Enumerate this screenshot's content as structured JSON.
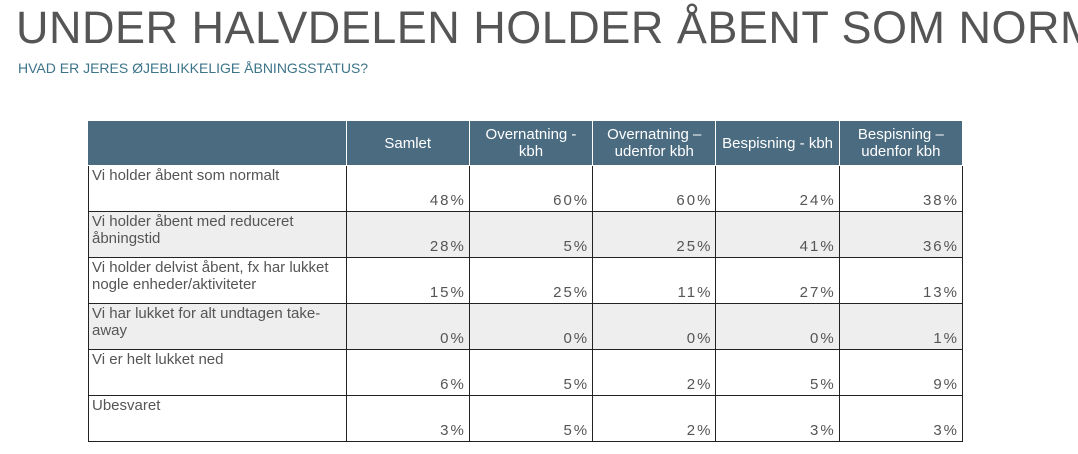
{
  "header": {
    "title": "UNDER HALVDELEN HOLDER ÅBENT SOM NORMALT",
    "subtitle": "HVAD ER JERES ØJEBLIKKELIGE ÅBNINGSSTATUS?"
  },
  "table": {
    "columns": [
      "",
      "Samlet",
      "Overnatning - kbh",
      "Overnatning – udenfor kbh",
      "Bespisning - kbh",
      "Bespisning – udenfor kbh"
    ],
    "rows": [
      [
        "Vi holder åbent som normalt",
        "48%",
        "60%",
        "60%",
        "24%",
        "38%"
      ],
      [
        "Vi holder åbent med reduceret åbningstid",
        "28%",
        "5%",
        "25%",
        "41%",
        "36%"
      ],
      [
        "Vi holder delvist åbent, fx har lukket nogle enheder/aktiviteter",
        "15%",
        "25%",
        "11%",
        "27%",
        "13%"
      ],
      [
        "Vi har lukket for alt undtagen take-away",
        "0%",
        "0%",
        "0%",
        "0%",
        "1%"
      ],
      [
        "Vi er helt lukket ned",
        "6%",
        "5%",
        "2%",
        "5%",
        "9%"
      ],
      [
        "Ubesvaret",
        "3%",
        "5%",
        "2%",
        "3%",
        "3%"
      ]
    ]
  }
}
